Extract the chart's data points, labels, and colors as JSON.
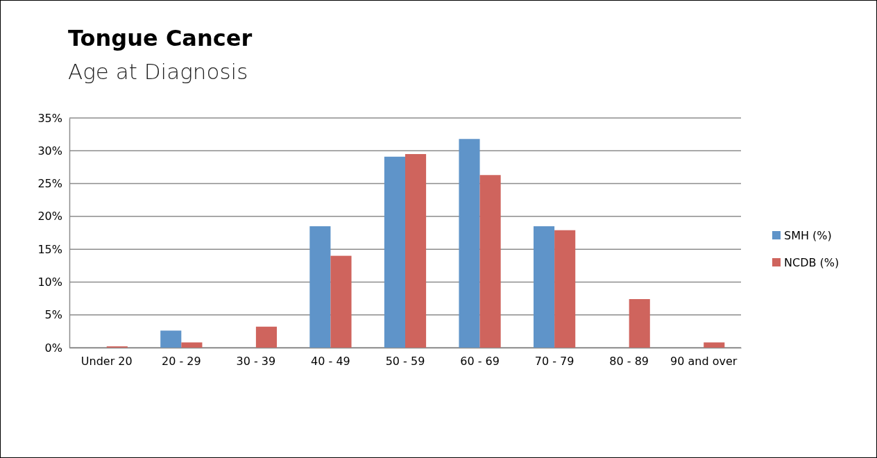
{
  "chart_data": {
    "type": "bar",
    "title": "Tongue Cancer",
    "subtitle": "Age at Diagnosis",
    "categories": [
      "Under 20",
      "20 - 29",
      "30 - 39",
      "40 - 49",
      "50 - 59",
      "60 - 69",
      "70 - 79",
      "80 - 89",
      "90  and over"
    ],
    "series": [
      {
        "name": "SMH (%)",
        "color": "#5f94c9",
        "values": [
          0,
          2.6,
          0,
          18.5,
          29.1,
          31.8,
          18.5,
          0,
          0
        ]
      },
      {
        "name": "NCDB (%)",
        "color": "#cf645d",
        "values": [
          0.2,
          0.8,
          3.2,
          14.0,
          29.5,
          26.3,
          17.9,
          7.4,
          0.8
        ]
      }
    ],
    "ylim": [
      0,
      35
    ],
    "yticks": [
      {
        "value": 0,
        "label": "0%"
      },
      {
        "value": 5,
        "label": "5%"
      },
      {
        "value": 10,
        "label": "10%"
      },
      {
        "value": 15,
        "label": "15%"
      },
      {
        "value": 20,
        "label": "20%"
      },
      {
        "value": 25,
        "label": "25%"
      },
      {
        "value": 30,
        "label": "30%"
      },
      {
        "value": 35,
        "label": "35%"
      }
    ],
    "grid": "y",
    "legend": "right"
  }
}
